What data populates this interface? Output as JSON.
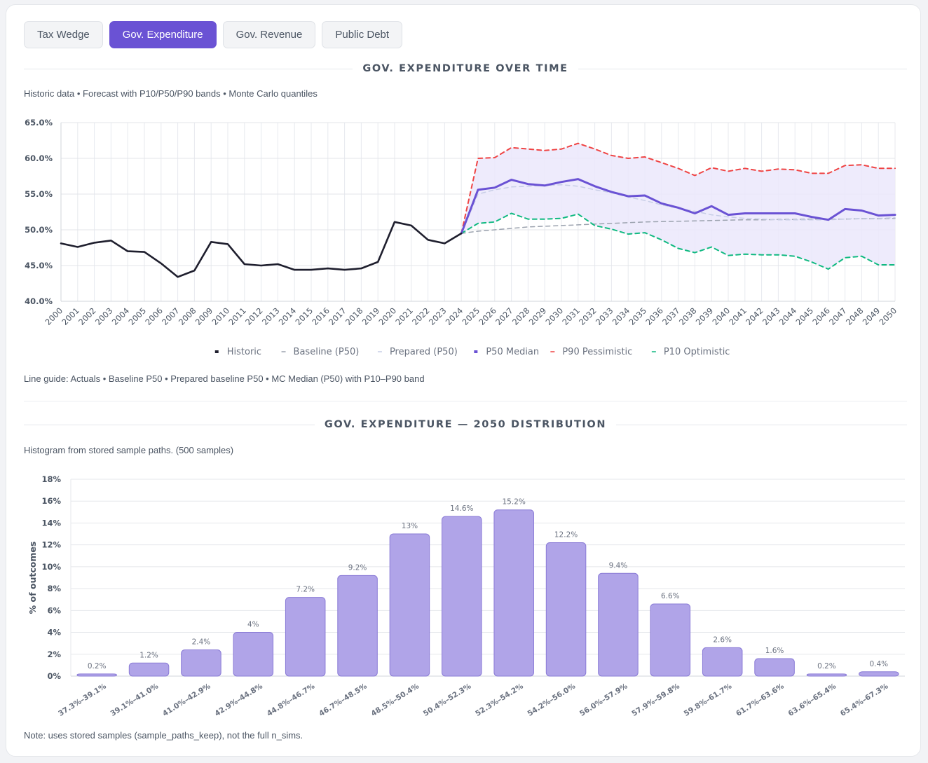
{
  "tabs": [
    {
      "label": "Tax Wedge",
      "active": false
    },
    {
      "label": "Gov. Expenditure",
      "active": true
    },
    {
      "label": "Gov. Revenue",
      "active": false
    },
    {
      "label": "Public Debt",
      "active": false
    }
  ],
  "timeseries": {
    "title": "GOV. EXPENDITURE OVER TIME",
    "subtitle": "Historic data • Forecast with P10/P50/P90 bands • Monte Carlo quantiles",
    "line_guide": "Line guide: Actuals • Baseline P50 • Prepared baseline P50 • MC Median (P50) with P10–P90 band"
  },
  "distribution": {
    "title": "GOV. EXPENDITURE — 2050 DISTRIBUTION",
    "subtitle": "Histogram from stored sample paths. (500 samples)",
    "note": "Note: uses stored samples (sample_paths_keep), not the full n_sims."
  },
  "colors": {
    "historic": "#1f1f2e",
    "baseline": "#9ca3af",
    "prepared": "#c7cde6",
    "median": "#6a52d4",
    "p90": "#ef4444",
    "p10": "#10b981",
    "band": "#ebe7fb",
    "bar": "#b0a4e8",
    "bar_stroke": "#8a7bd6"
  },
  "chart_data": [
    {
      "type": "line",
      "x": [
        2000,
        2001,
        2002,
        2003,
        2004,
        2005,
        2006,
        2007,
        2008,
        2009,
        2010,
        2011,
        2012,
        2013,
        2014,
        2015,
        2016,
        2017,
        2018,
        2019,
        2020,
        2021,
        2022,
        2023,
        2024,
        2025,
        2026,
        2027,
        2028,
        2029,
        2030,
        2031,
        2032,
        2033,
        2034,
        2035,
        2036,
        2037,
        2038,
        2039,
        2040,
        2041,
        2042,
        2043,
        2044,
        2045,
        2046,
        2047,
        2048,
        2049,
        2050
      ],
      "ylim": [
        40,
        65
      ],
      "yticks": [
        40,
        45,
        50,
        55,
        60,
        65
      ],
      "y_tick_suffix": ".0%",
      "grid": true,
      "legend_position": "bottom",
      "series": [
        {
          "name": "Historic",
          "style": "solid",
          "x": [
            2000,
            2001,
            2002,
            2003,
            2004,
            2005,
            2006,
            2007,
            2008,
            2009,
            2010,
            2011,
            2012,
            2013,
            2014,
            2015,
            2016,
            2017,
            2018,
            2019,
            2020,
            2021,
            2022,
            2023,
            2024
          ],
          "values": [
            48.1,
            47.6,
            48.2,
            48.5,
            47.0,
            46.9,
            45.3,
            43.4,
            44.3,
            48.3,
            48.0,
            45.2,
            45.0,
            45.2,
            44.4,
            44.4,
            44.6,
            44.4,
            44.6,
            45.5,
            51.1,
            50.6,
            48.6,
            48.1,
            49.5
          ]
        },
        {
          "name": "Baseline (P50)",
          "style": "dashed",
          "x": [
            2024,
            2025,
            2026,
            2027,
            2028,
            2029,
            2030,
            2031,
            2032,
            2033,
            2034,
            2035,
            2036,
            2037,
            2038,
            2039,
            2040,
            2041,
            2042,
            2043,
            2044,
            2045,
            2046,
            2047,
            2048,
            2049,
            2050
          ],
          "values": [
            49.5,
            49.8,
            50.0,
            50.2,
            50.4,
            50.5,
            50.6,
            50.7,
            50.8,
            50.9,
            51.0,
            51.1,
            51.15,
            51.2,
            51.25,
            51.3,
            51.35,
            51.4,
            51.4,
            51.45,
            51.45,
            51.5,
            51.5,
            51.5,
            51.55,
            51.55,
            51.6
          ]
        },
        {
          "name": "Prepared (P50)",
          "style": "dashed",
          "x": [
            2024,
            2025,
            2026,
            2027,
            2028,
            2029,
            2030,
            2031,
            2032,
            2033,
            2034,
            2035,
            2036,
            2037,
            2038,
            2039,
            2040,
            2041,
            2042,
            2043,
            2044,
            2045,
            2046,
            2047,
            2048,
            2049,
            2050
          ],
          "values": [
            49.5,
            55.0,
            55.6,
            56.0,
            56.1,
            56.2,
            56.3,
            56.1,
            55.6,
            55.2,
            54.6,
            54.1,
            53.5,
            53.0,
            52.6,
            52.1,
            51.8,
            51.6,
            51.5,
            51.4,
            51.4,
            51.4,
            51.4,
            51.5,
            51.6,
            51.6,
            51.7
          ]
        },
        {
          "name": "P50 Median",
          "style": "solid",
          "x": [
            2024,
            2025,
            2026,
            2027,
            2028,
            2029,
            2030,
            2031,
            2032,
            2033,
            2034,
            2035,
            2036,
            2037,
            2038,
            2039,
            2040,
            2041,
            2042,
            2043,
            2044,
            2045,
            2046,
            2047,
            2048,
            2049,
            2050
          ],
          "values": [
            49.5,
            55.6,
            55.9,
            57.0,
            56.4,
            56.2,
            56.7,
            57.1,
            56.1,
            55.3,
            54.7,
            54.8,
            53.7,
            53.1,
            52.3,
            53.3,
            52.1,
            52.3,
            52.3,
            52.3,
            52.3,
            51.8,
            51.4,
            52.9,
            52.7,
            52.0,
            52.1
          ]
        },
        {
          "name": "P90 Pessimistic",
          "style": "dashed",
          "x": [
            2024,
            2025,
            2026,
            2027,
            2028,
            2029,
            2030,
            2031,
            2032,
            2033,
            2034,
            2035,
            2036,
            2037,
            2038,
            2039,
            2040,
            2041,
            2042,
            2043,
            2044,
            2045,
            2046,
            2047,
            2048,
            2049,
            2050
          ],
          "values": [
            49.5,
            60.0,
            60.1,
            61.5,
            61.3,
            61.1,
            61.3,
            62.1,
            61.3,
            60.4,
            60.0,
            60.2,
            59.4,
            58.6,
            57.6,
            58.7,
            58.2,
            58.6,
            58.2,
            58.5,
            58.4,
            57.9,
            57.9,
            59.0,
            59.1,
            58.6,
            58.6
          ]
        },
        {
          "name": "P10 Optimistic",
          "style": "dashed",
          "x": [
            2024,
            2025,
            2026,
            2027,
            2028,
            2029,
            2030,
            2031,
            2032,
            2033,
            2034,
            2035,
            2036,
            2037,
            2038,
            2039,
            2040,
            2041,
            2042,
            2043,
            2044,
            2045,
            2046,
            2047,
            2048,
            2049,
            2050
          ],
          "values": [
            49.5,
            50.9,
            51.1,
            52.3,
            51.5,
            51.5,
            51.6,
            52.2,
            50.6,
            50.1,
            49.4,
            49.6,
            48.6,
            47.4,
            46.8,
            47.6,
            46.4,
            46.6,
            46.5,
            46.5,
            46.3,
            45.5,
            44.5,
            46.1,
            46.3,
            45.1,
            45.1
          ]
        }
      ]
    },
    {
      "type": "bar",
      "categories": [
        "37.3%–39.1%",
        "39.1%–41.0%",
        "41.0%–42.9%",
        "42.9%–44.8%",
        "44.8%–46.7%",
        "46.7%–48.5%",
        "48.5%–50.4%",
        "50.4%–52.3%",
        "52.3%–54.2%",
        "54.2%–56.0%",
        "56.0%–57.9%",
        "57.9%–59.8%",
        "59.8%–61.7%",
        "61.7%–63.6%",
        "63.6%–65.4%",
        "65.4%–67.3%"
      ],
      "values": [
        0.2,
        1.2,
        2.4,
        4,
        7.2,
        9.2,
        13,
        14.6,
        15.2,
        12.2,
        9.4,
        6.6,
        2.6,
        1.6,
        0.2,
        0.4
      ],
      "value_labels": [
        "0.2%",
        "1.2%",
        "2.4%",
        "4%",
        "7.2%",
        "9.2%",
        "13%",
        "14.6%",
        "15.2%",
        "12.2%",
        "9.4%",
        "6.6%",
        "2.6%",
        "1.6%",
        "0.2%",
        "0.4%"
      ],
      "ylabel": "% of outcomes",
      "ylim": [
        0,
        18
      ],
      "yticks": [
        0,
        2,
        4,
        6,
        8,
        10,
        12,
        14,
        16,
        18
      ],
      "y_tick_suffix": "%",
      "grid": true
    }
  ]
}
